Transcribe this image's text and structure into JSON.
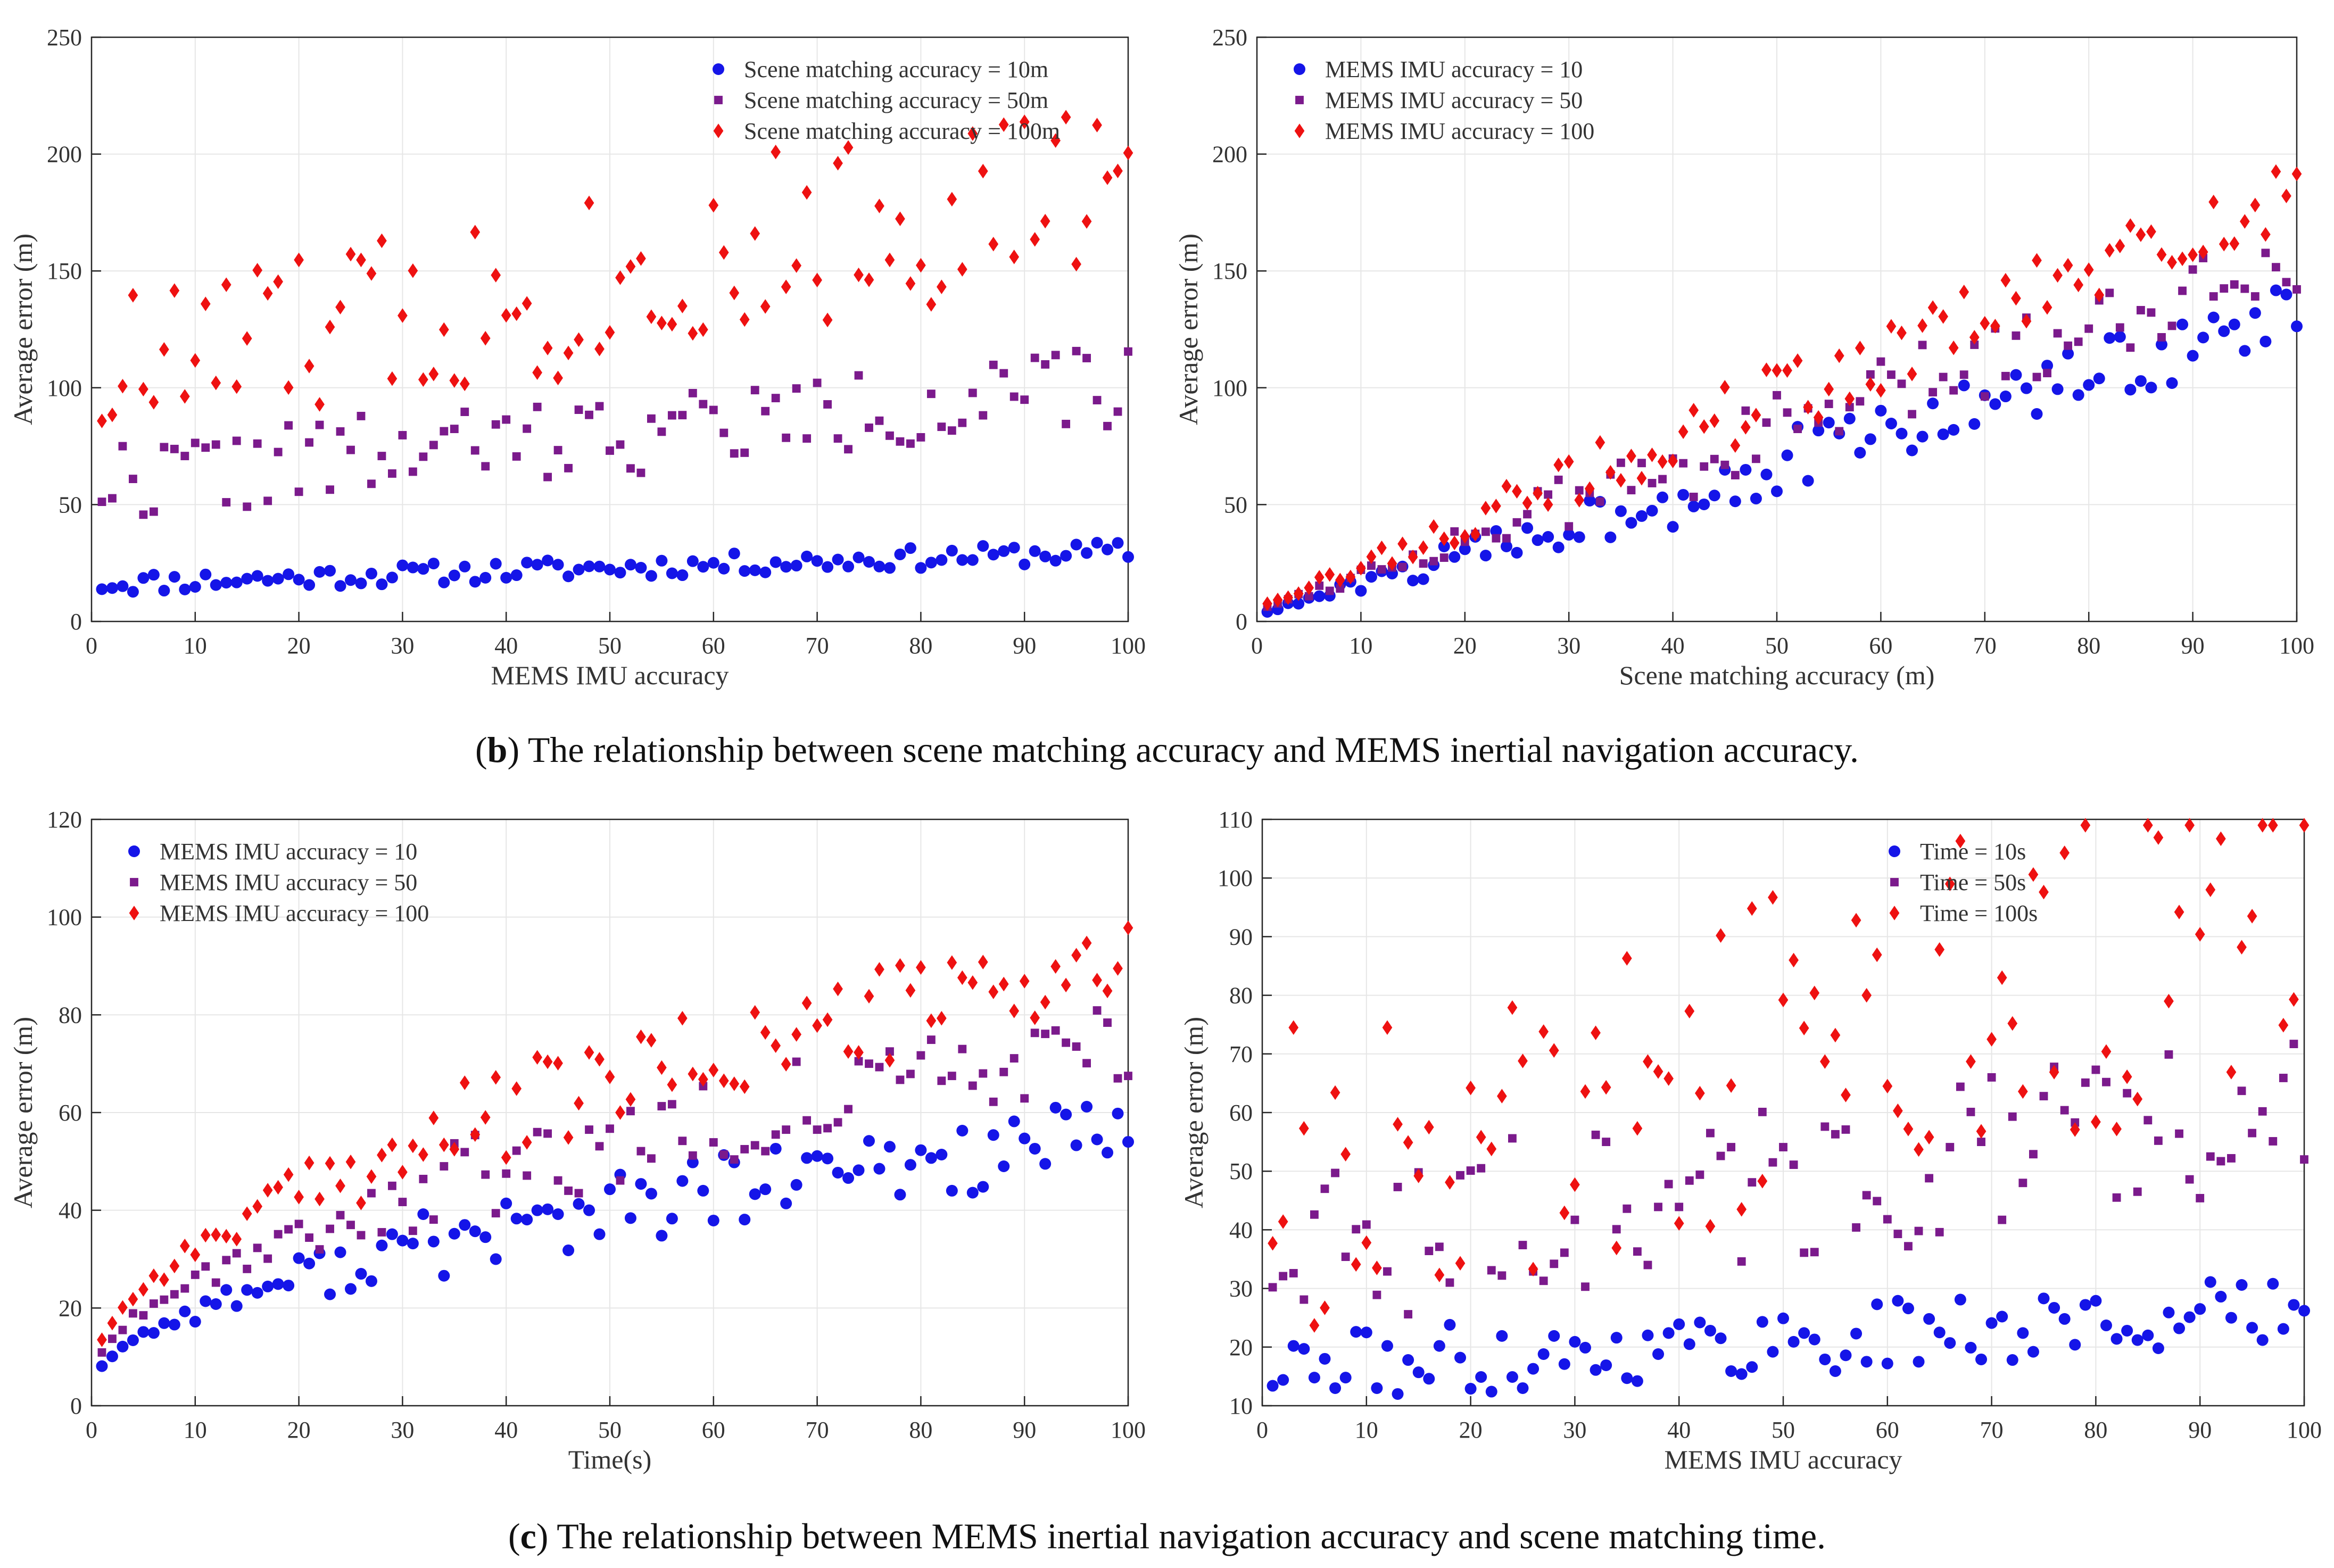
{
  "colors": {
    "blue": "#1515e8",
    "purple": "#7b1a8c",
    "red": "#ee1111",
    "grid": "#e6e6e6",
    "axis": "#262626"
  },
  "captions": {
    "b": {
      "letter": "b",
      "text": ") The relationship between scene matching accuracy and MEMS inertial navigation accuracy."
    },
    "c": {
      "letter": "c",
      "text": ") The relationship between MEMS inertial navigation accuracy and scene matching time."
    }
  },
  "chart_data": [
    {
      "id": "b-left",
      "type": "scatter",
      "xlabel": "MEMS IMU accuracy",
      "ylabel": "Average error (m)",
      "xlim": [
        0,
        100
      ],
      "ylim": [
        0,
        250
      ],
      "xticks": [
        0,
        10,
        20,
        30,
        40,
        50,
        60,
        70,
        80,
        90,
        100
      ],
      "yticks": [
        0,
        50,
        100,
        150,
        200,
        250
      ],
      "legend_position": "top-right",
      "series": [
        {
          "name": "Scene matching accuracy = 10m",
          "marker": "circle",
          "color": "blue",
          "model": "flat",
          "params": [
            16,
            30,
            4.5
          ],
          "seed": 11
        },
        {
          "name": "Scene matching accuracy = 50m",
          "marker": "square",
          "color": "purple",
          "model": "flat",
          "params": [
            60,
            100,
            18
          ],
          "seed": 22
        },
        {
          "name": "Scene matching accuracy = 100m",
          "marker": "diamond",
          "color": "red",
          "model": "flat",
          "params": [
            105,
            190,
            40
          ],
          "seed": 33
        }
      ]
    },
    {
      "id": "b-right",
      "type": "scatter",
      "xlabel": "Scene matching accuracy (m)",
      "ylabel": "Average error (m)",
      "xlim": [
        0,
        100
      ],
      "ylim": [
        0,
        250
      ],
      "xticks": [
        0,
        10,
        20,
        30,
        40,
        50,
        60,
        70,
        80,
        90,
        100
      ],
      "yticks": [
        0,
        50,
        100,
        150,
        200,
        250
      ],
      "legend_position": "top-left",
      "series": [
        {
          "name": "MEMS IMU accuracy = 10",
          "marker": "circle",
          "color": "blue",
          "model": "linear",
          "params": [
            3,
            1.28,
            14
          ],
          "seed": 44
        },
        {
          "name": "MEMS IMU accuracy = 50",
          "marker": "square",
          "color": "purple",
          "model": "linear",
          "params": [
            5,
            1.52,
            16
          ],
          "seed": 55
        },
        {
          "name": "MEMS IMU accuracy = 100",
          "marker": "diamond",
          "color": "red",
          "model": "linear",
          "params": [
            6,
            1.78,
            16
          ],
          "seed": 66
        }
      ]
    },
    {
      "id": "c-left",
      "type": "scatter",
      "xlabel": "Time(s)",
      "ylabel": "Average error (m)",
      "xlim": [
        0,
        100
      ],
      "ylim": [
        0,
        120
      ],
      "xticks": [
        0,
        10,
        20,
        30,
        40,
        50,
        60,
        70,
        80,
        90,
        100
      ],
      "yticks": [
        0,
        20,
        40,
        60,
        80,
        100,
        120
      ],
      "legend_position": "top-left",
      "series": [
        {
          "name": "MEMS IMU accuracy = 10",
          "marker": "circle",
          "color": "blue",
          "model": "sqrt",
          "params": [
            3,
            5.2,
            8
          ],
          "seed": 77
        },
        {
          "name": "MEMS IMU accuracy = 50",
          "marker": "square",
          "color": "purple",
          "model": "sqrt",
          "params": [
            4,
            7.0,
            9
          ],
          "seed": 88
        },
        {
          "name": "MEMS IMU accuracy = 100",
          "marker": "diamond",
          "color": "red",
          "model": "sqrt",
          "params": [
            5,
            8.6,
            10
          ],
          "seed": 99
        }
      ]
    },
    {
      "id": "c-right",
      "type": "scatter",
      "xlabel": "MEMS IMU accuracy",
      "ylabel": "Average error (m)",
      "xlim": [
        0,
        100
      ],
      "ylim": [
        10,
        110
      ],
      "xticks": [
        0,
        10,
        20,
        30,
        40,
        50,
        60,
        70,
        80,
        90,
        100
      ],
      "yticks": [
        10,
        20,
        30,
        40,
        50,
        60,
        70,
        80,
        90,
        100,
        110
      ],
      "legend_position": "top-right",
      "series": [
        {
          "name": "Time = 10s",
          "marker": "circle",
          "color": "blue",
          "model": "flat",
          "params": [
            16,
            26,
            6
          ],
          "seed": 111
        },
        {
          "name": "Time = 50s",
          "marker": "square",
          "color": "purple",
          "model": "flat",
          "params": [
            36,
            60,
            14
          ],
          "seed": 122
        },
        {
          "name": "Time = 100s",
          "marker": "diamond",
          "color": "red",
          "model": "flat",
          "params": [
            50,
            95,
            30
          ],
          "seed": 133
        }
      ]
    }
  ]
}
